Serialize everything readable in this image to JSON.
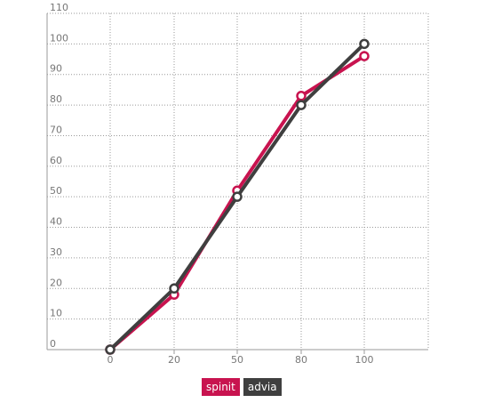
{
  "chart_data": {
    "type": "line",
    "x": [
      0,
      20,
      50,
      80,
      100
    ],
    "categories": [
      "0",
      "20",
      "50",
      "80",
      "100"
    ],
    "series": [
      {
        "name": "spinit",
        "values": [
          0,
          18,
          52,
          83,
          96
        ],
        "color": "#c8134f"
      },
      {
        "name": "advia",
        "values": [
          0,
          20,
          50,
          80,
          100
        ],
        "color": "#3f3f3f"
      }
    ],
    "y_ticks": [
      0,
      10,
      20,
      30,
      40,
      50,
      60,
      70,
      80,
      90,
      100,
      110
    ],
    "ylim": [
      0,
      110
    ],
    "grid": true,
    "title": "",
    "xlabel": "",
    "ylabel": "",
    "legend_position": "bottom-center"
  }
}
